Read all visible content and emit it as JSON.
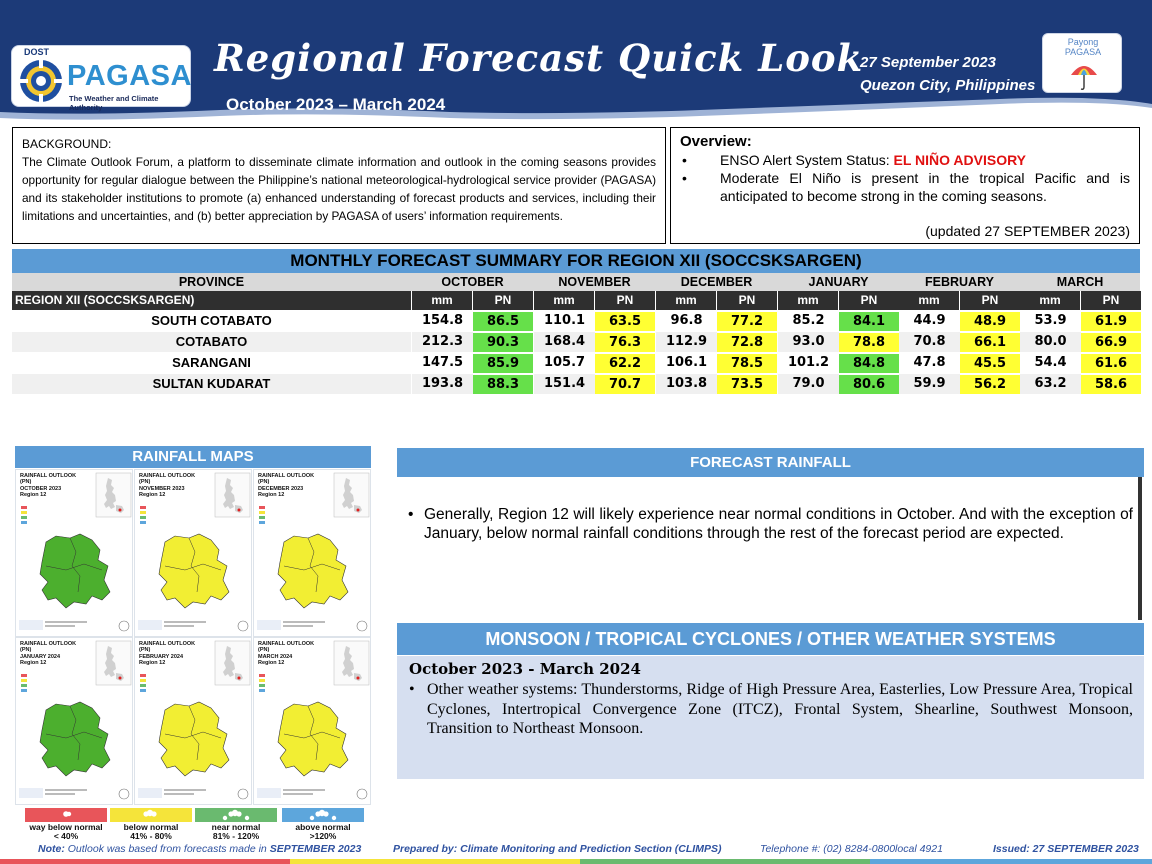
{
  "header": {
    "agency_dept": "DOST",
    "agency_name": "PAGASA",
    "agency_tagline": "The Weather and Climate Authority",
    "title": "Regional Forecast Quick Look",
    "period": "October 2023 – March 2024",
    "date": "27 September 2023",
    "place": "Quezon City, Philippines",
    "partner_line1": "Payong",
    "partner_line2": "PAGASA",
    "colors": {
      "band": "#1c3a78",
      "band_edge": "#9fb3d6"
    }
  },
  "background": {
    "title": "BACKGROUND:",
    "text": "The Climate Outlook Forum, a platform to disseminate climate information and outlook in the coming seasons provides opportunity for regular dialogue between the Philippine’s national meteorological-hydrological service provider (PAGASA) and its stakeholder institutions to promote (a) enhanced understanding of forecast products and services, including their limitations and uncertainties, and (b) better appreciation by PAGASA of users’ information requirements."
  },
  "overview": {
    "title": "Overview:",
    "item1_prefix": "ENSO Alert System Status: ",
    "item1_alert": "EL NIÑO ADVISORY",
    "item2": "Moderate El Niño is present in the tropical Pacific and is anticipated to become strong in the coming seasons.",
    "updated": "(updated 27 SEPTEMBER 2023)"
  },
  "table": {
    "title": "MONTHLY FORECAST SUMMARY FOR REGION XII (SOCCSKSARGEN)",
    "province_header": "PROVINCE",
    "region_label": "REGION XII (SOCCSKSARGEN)",
    "months": [
      "OCTOBER",
      "NOVEMBER",
      "DECEMBER",
      "JANUARY",
      "FEBRUARY",
      "MARCH"
    ],
    "mm_label": "mm",
    "pn_label": "PN",
    "rows": [
      {
        "name": "SOUTH COTABATO",
        "mm": [
          "154.8",
          "110.1",
          "96.8",
          "85.2",
          "44.9",
          "53.9"
        ],
        "pn": [
          "86.5",
          "63.5",
          "77.2",
          "84.1",
          "48.9",
          "61.9"
        ]
      },
      {
        "name": "COTABATO",
        "mm": [
          "212.3",
          "168.4",
          "112.9",
          "93.0",
          "70.8",
          "80.0"
        ],
        "pn": [
          "90.3",
          "76.3",
          "72.8",
          "78.8",
          "66.1",
          "66.9"
        ]
      },
      {
        "name": "SARANGANI",
        "mm": [
          "147.5",
          "105.7",
          "106.1",
          "101.2",
          "47.8",
          "54.4"
        ],
        "pn": [
          "85.9",
          "62.2",
          "78.5",
          "84.8",
          "45.5",
          "61.6"
        ]
      },
      {
        "name": "SULTAN KUDARAT",
        "mm": [
          "193.8",
          "151.4",
          "103.8",
          "79.0",
          "59.9",
          "63.2"
        ],
        "pn": [
          "88.3",
          "70.7",
          "73.5",
          "80.6",
          "56.2",
          "58.6"
        ]
      }
    ],
    "colors": {
      "near_normal": "#66e04a",
      "below_normal": "#ffff33",
      "header": "#5b9bd5"
    }
  },
  "maps": {
    "title": "RAINFALL MAPS",
    "panels": [
      {
        "line1": "RAINFALL OUTLOOK (PN)",
        "line2": "OCTOBER 2023",
        "line3": "Region 12",
        "color": "#4caf2e"
      },
      {
        "line1": "RAINFALL OUTLOOK (PN)",
        "line2": "NOVEMBER 2023",
        "line3": "Region 12",
        "color": "#f2ee33"
      },
      {
        "line1": "RAINFALL OUTLOOK (PN)",
        "line2": "DECEMBER 2023",
        "line3": "Region 12",
        "color": "#f2ee33"
      },
      {
        "line1": "RAINFALL OUTLOOK (PN)",
        "line2": "JANUARY 2024",
        "line3": "Region 12",
        "color": "#4caf2e"
      },
      {
        "line1": "RAINFALL OUTLOOK (PN)",
        "line2": "FEBRUARY 2024",
        "line3": "Region 12",
        "color": "#f2ee33"
      },
      {
        "line1": "RAINFALL OUTLOOK (PN)",
        "line2": "MARCH 2024",
        "line3": "Region 12",
        "color": "#f2ee33"
      }
    ],
    "legend": [
      {
        "label": "way below normal",
        "range": "< 40%",
        "color": "#e8555a"
      },
      {
        "label": "below normal",
        "range": "41%  -  80%",
        "color": "#f5e43a"
      },
      {
        "label": "near normal",
        "range": "81% - 120%",
        "color": "#6aba6f"
      },
      {
        "label": "above normal",
        "range": ">120%",
        "color": "#5da6dc"
      }
    ]
  },
  "forecast_rainfall": {
    "title": "FORECAST RAINFALL",
    "text": "Generally, Region 12 will likely experience near normal conditions in October. And with the exception of January, below normal rainfall conditions through the rest of the forecast period are expected."
  },
  "monsoon": {
    "title": "MONSOON / TROPICAL CYCLONES / OTHER WEATHER SYSTEMS",
    "period": "October 2023 - March 2024",
    "text": "Other weather systems: Thunderstorms,  Ridge of High Pressure Area,  Easterlies, Low Pressure Area, Tropical Cyclones, Intertropical Convergence Zone (ITCZ), Frontal System, Shearline, Southwest Monsoon, Transition to Northeast Monsoon."
  },
  "footer": {
    "note_label": "Note:",
    "note_text": " Outlook was based from forecasts made in ",
    "note_month": "SEPTEMBER 2023",
    "prepared_label": "Prepared by:",
    "prepared_text": " Climate Monitoring and Prediction Section (CLIMPS)",
    "telephone": "Telephone #: (02) 8284-0800local 4921",
    "issued": "Issued: 27 SEPTEMBER 2023"
  }
}
